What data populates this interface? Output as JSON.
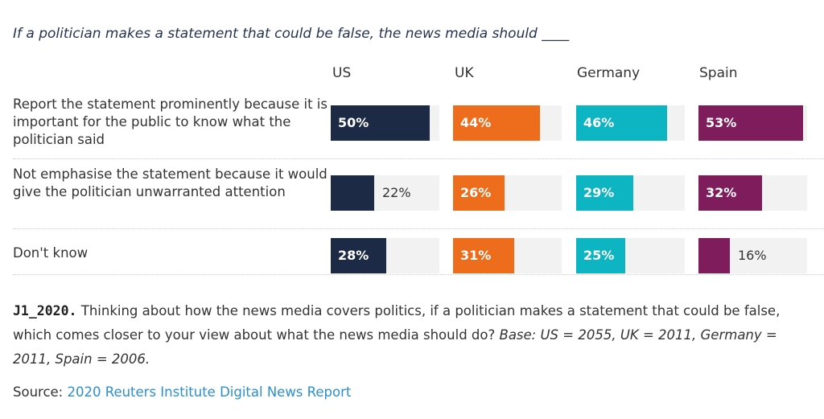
{
  "question": "If a politician makes a statement that could be false, the news media should ____",
  "colors": {
    "US": "#1d2a45",
    "UK": "#ed6d1c",
    "Germany": "#0db5c3",
    "Spain": "#7f1d5c",
    "track": "#f2f2f2"
  },
  "chart_data": {
    "type": "bar",
    "orientation": "horizontal",
    "categories": [
      "Report the statement prominently because it is important for the public to know what the politician said",
      "Not emphasise the statement because it would give the politician unwarranted attention",
      "Don't know"
    ],
    "series": [
      {
        "name": "US",
        "values": [
          50,
          22,
          28
        ],
        "labels": [
          "50%",
          "22%",
          "28%"
        ]
      },
      {
        "name": "UK",
        "values": [
          44,
          26,
          31
        ],
        "labels": [
          "44%",
          "26%",
          "31%"
        ]
      },
      {
        "name": "Germany",
        "values": [
          46,
          29,
          25
        ],
        "labels": [
          "46%",
          "29%",
          "25%"
        ]
      },
      {
        "name": "Spain",
        "values": [
          53,
          32,
          16
        ],
        "labels": [
          "53%",
          "32%",
          "16%"
        ]
      }
    ],
    "xlim": [
      0,
      55
    ]
  },
  "note": {
    "code": "J1_2020.",
    "text": "Thinking about how the news media covers politics, if a politician makes a statement that could be false, which comes closer to your view about what the news media should do?",
    "base": "Base: US = 2055, UK = 2011, Germany = 2011, Spain = 2006."
  },
  "source": {
    "label": "Source:",
    "link_text": "2020 Reuters Institute Digital News Report"
  }
}
